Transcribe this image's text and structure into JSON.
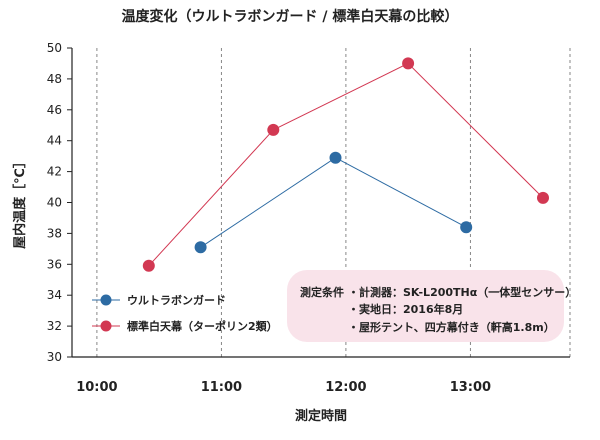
{
  "chart_data": {
    "type": "line",
    "title": "温度変化（ウルトラボンガード / 標準白天幕の比較）",
    "xlabel": "測定時間",
    "ylabel": "屋内温度［℃］",
    "ylim": [
      30,
      50
    ],
    "yticks": [
      "30",
      "32",
      "34",
      "36",
      "38",
      "40",
      "42",
      "44",
      "46",
      "48",
      "50"
    ],
    "xticks": [
      "10:00",
      "11:00",
      "12:00",
      "13:00"
    ],
    "xlim_hours": [
      9.8,
      13.8
    ],
    "grid": "vertical dashed",
    "legend_placement": "bottom-left",
    "series": [
      {
        "name": "ウルトラボンガード",
        "color": "#2d6ba3",
        "x": [
          "10:50",
          "11:55",
          "12:58"
        ],
        "y": [
          37.1,
          42.9,
          38.4
        ]
      },
      {
        "name": "標準白天幕（ターポリン2類）",
        "color": "#d23852",
        "x": [
          "10:25",
          "11:25",
          "12:30",
          "13:35"
        ],
        "y": [
          35.9,
          44.7,
          49.0,
          40.3
        ]
      }
    ],
    "annotation": {
      "heading": "測定条件",
      "lines": [
        "・計測器：SK-L200THα（一体型センサー）",
        "・実地日：2016年8月",
        "・屋形テント、四方幕付き（軒高1.8m）"
      ],
      "background": "#f9e3ea"
    }
  }
}
